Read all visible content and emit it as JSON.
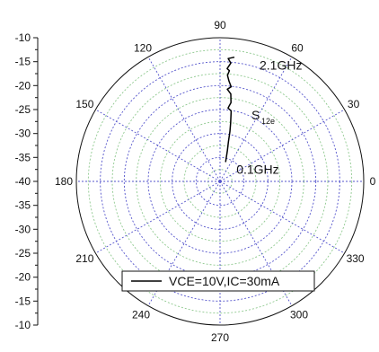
{
  "chart_data": {
    "type": "polar",
    "angular_ticks": [
      "0",
      "30",
      "60",
      "90",
      "120",
      "150",
      "180",
      "210",
      "240",
      "270",
      "300",
      "330"
    ],
    "radial_ticks": [
      "-10",
      "-15",
      "-20",
      "-25",
      "-30",
      "-35",
      "-40",
      "-35",
      "-30",
      "-25",
      "-20",
      "-15",
      "-10"
    ],
    "rlim": [
      -40,
      -10
    ],
    "rings": [
      -37.5,
      -35,
      -32.5,
      -30,
      -27.5,
      -25,
      -22.5,
      -20,
      -17.5,
      -15,
      -12.5,
      -10
    ],
    "grid": true,
    "legend_placement": "bottom",
    "series": [
      {
        "name": "VCE=10V,IC=30mA",
        "points": [
          {
            "angle": 74.0,
            "r": -35.8
          },
          {
            "angle": 76.5,
            "r": -33.5
          },
          {
            "angle": 78.0,
            "r": -31.6
          },
          {
            "angle": 78.8,
            "r": -29.4
          },
          {
            "angle": 79.7,
            "r": -27.6
          },
          {
            "angle": 81.0,
            "r": -25.1
          },
          {
            "angle": 83.8,
            "r": -24.6
          },
          {
            "angle": 82.1,
            "r": -23.4
          },
          {
            "angle": 83.0,
            "r": -21.6
          },
          {
            "angle": 85.5,
            "r": -20.7
          },
          {
            "angle": 83.3,
            "r": -20.1
          },
          {
            "angle": 84.9,
            "r": -19.0
          },
          {
            "angle": 86.0,
            "r": -17.8
          },
          {
            "angle": 85.2,
            "r": -16.8
          },
          {
            "angle": 86.4,
            "r": -16.4
          },
          {
            "angle": 84.8,
            "r": -15.2
          },
          {
            "angle": 86.2,
            "r": -14.3
          },
          {
            "angle": 83.4,
            "r": -13.9
          }
        ],
        "color": "#000000"
      }
    ],
    "annotations": {
      "start": "0.1GHz",
      "end": "2.1GHz",
      "param_main": "S",
      "param_sub": "12e"
    }
  },
  "colors": {
    "grid_blue": "#5555cc",
    "grid_green": "#8fc98f",
    "axis": "#111111",
    "series": "#000000"
  }
}
